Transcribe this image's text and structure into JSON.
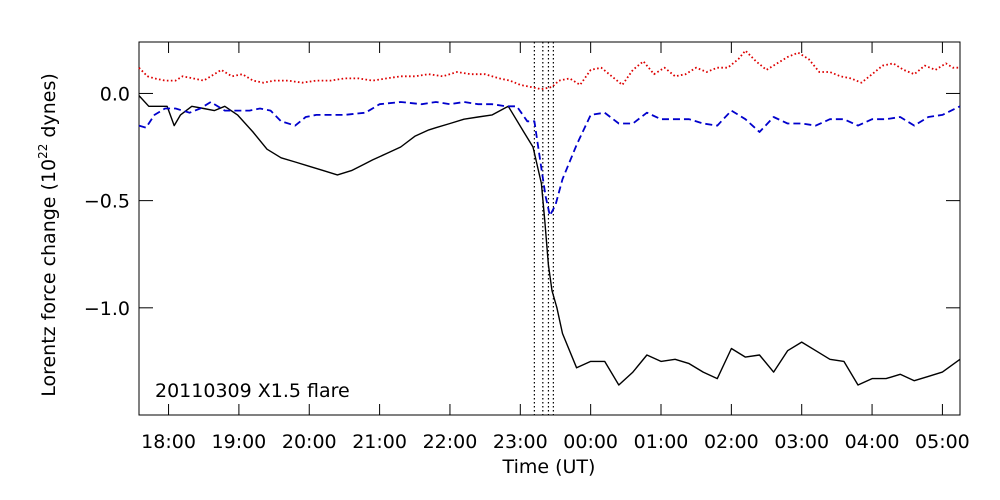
{
  "chart_data": {
    "type": "line",
    "title": "",
    "annotation": "20110309 X1.5 flare",
    "xlabel": "Time (UT)",
    "ylabel_main": "Lorentz force change (10",
    "ylabel_exp": "22",
    "ylabel_tail": " dynes)",
    "x_ticks": [
      "18:00",
      "19:00",
      "20:00",
      "21:00",
      "22:00",
      "23:00",
      "00:00",
      "01:00",
      "02:00",
      "03:00",
      "04:00",
      "05:00"
    ],
    "x_tick_hours": [
      18,
      19,
      20,
      21,
      22,
      23,
      24,
      25,
      26,
      27,
      28,
      29
    ],
    "xlim_hours": [
      17.58,
      29.25
    ],
    "y_ticks": [
      0.0,
      -0.5,
      -1.0
    ],
    "y_tick_labels": [
      "0.0",
      "−0.5",
      "−1.0"
    ],
    "ylim": [
      -1.5,
      0.24
    ],
    "grid": false,
    "flare_lines_hours": [
      23.2,
      23.32,
      23.4,
      23.47
    ],
    "series": [
      {
        "style": "solid",
        "color": "#000000",
        "x": [
          17.58,
          17.72,
          17.83,
          17.98,
          18.08,
          18.17,
          18.33,
          18.5,
          18.65,
          18.8,
          18.98,
          19.2,
          19.4,
          19.6,
          19.8,
          20.0,
          20.2,
          20.4,
          20.6,
          20.78,
          20.9,
          21.1,
          21.3,
          21.5,
          21.7,
          21.8,
          22.0,
          22.2,
          22.4,
          22.6,
          22.83,
          23.05,
          23.18,
          23.3,
          23.35,
          23.4,
          23.45,
          23.52,
          23.6,
          23.8,
          24.0,
          24.2,
          24.4,
          24.6,
          24.8,
          25.0,
          25.2,
          25.4,
          25.6,
          25.8,
          26.0,
          26.2,
          26.4,
          26.6,
          26.8,
          27.0,
          27.2,
          27.4,
          27.6,
          27.8,
          28.0,
          28.2,
          28.4,
          28.6,
          28.8,
          29.0,
          29.25
        ],
        "y": [
          -0.01,
          -0.06,
          -0.06,
          -0.06,
          -0.15,
          -0.1,
          -0.06,
          -0.07,
          -0.08,
          -0.06,
          -0.1,
          -0.18,
          -0.26,
          -0.3,
          -0.32,
          -0.34,
          -0.36,
          -0.38,
          -0.36,
          -0.33,
          -0.31,
          -0.28,
          -0.25,
          -0.2,
          -0.17,
          -0.16,
          -0.14,
          -0.12,
          -0.11,
          -0.1,
          -0.06,
          -0.18,
          -0.25,
          -0.42,
          -0.6,
          -0.8,
          -0.92,
          -1.0,
          -1.12,
          -1.28,
          -1.25,
          -1.25,
          -1.36,
          -1.3,
          -1.22,
          -1.25,
          -1.24,
          -1.26,
          -1.3,
          -1.33,
          -1.19,
          -1.23,
          -1.22,
          -1.3,
          -1.2,
          -1.16,
          -1.2,
          -1.24,
          -1.25,
          -1.36,
          -1.33,
          -1.33,
          -1.31,
          -1.34,
          -1.32,
          -1.3,
          -1.24
        ]
      },
      {
        "style": "dashed",
        "color": "#0000cc",
        "x": [
          17.58,
          17.68,
          17.8,
          17.95,
          18.1,
          18.3,
          18.45,
          18.6,
          18.8,
          19.0,
          19.15,
          19.3,
          19.45,
          19.6,
          19.8,
          19.95,
          20.1,
          20.3,
          20.5,
          20.8,
          21.0,
          21.3,
          21.6,
          21.8,
          22.0,
          22.2,
          22.4,
          22.6,
          22.8,
          22.95,
          23.1,
          23.2,
          23.3,
          23.36,
          23.42,
          23.5,
          23.6,
          23.8,
          24.0,
          24.2,
          24.4,
          24.6,
          24.8,
          25.0,
          25.2,
          25.4,
          25.6,
          25.8,
          26.0,
          26.2,
          26.4,
          26.6,
          26.8,
          27.0,
          27.2,
          27.4,
          27.6,
          27.8,
          28.0,
          28.2,
          28.4,
          28.6,
          28.8,
          29.0,
          29.25
        ],
        "y": [
          -0.15,
          -0.16,
          -0.1,
          -0.07,
          -0.07,
          -0.09,
          -0.07,
          -0.04,
          -0.08,
          -0.08,
          -0.08,
          -0.07,
          -0.08,
          -0.13,
          -0.15,
          -0.11,
          -0.1,
          -0.1,
          -0.1,
          -0.09,
          -0.05,
          -0.04,
          -0.05,
          -0.04,
          -0.05,
          -0.04,
          -0.05,
          -0.05,
          -0.06,
          -0.06,
          -0.13,
          -0.13,
          -0.35,
          -0.48,
          -0.57,
          -0.52,
          -0.4,
          -0.24,
          -0.1,
          -0.09,
          -0.14,
          -0.14,
          -0.09,
          -0.12,
          -0.12,
          -0.12,
          -0.14,
          -0.15,
          -0.08,
          -0.12,
          -0.18,
          -0.11,
          -0.14,
          -0.14,
          -0.15,
          -0.12,
          -0.12,
          -0.15,
          -0.12,
          -0.12,
          -0.11,
          -0.15,
          -0.11,
          -0.1,
          -0.06
        ]
      },
      {
        "style": "dotted",
        "color": "#dd0000",
        "x": [
          17.58,
          17.7,
          17.8,
          17.95,
          18.1,
          18.2,
          18.35,
          18.5,
          18.6,
          18.75,
          18.9,
          19.05,
          19.2,
          19.35,
          19.5,
          19.7,
          19.9,
          20.1,
          20.3,
          20.5,
          20.7,
          20.9,
          21.1,
          21.3,
          21.5,
          21.7,
          21.9,
          22.1,
          22.3,
          22.5,
          22.7,
          22.85,
          23.0,
          23.15,
          23.3,
          23.45,
          23.55,
          23.7,
          23.85,
          24.0,
          24.15,
          24.3,
          24.45,
          24.6,
          24.75,
          24.9,
          25.05,
          25.2,
          25.35,
          25.5,
          25.65,
          25.8,
          25.95,
          26.1,
          26.2,
          26.35,
          26.5,
          26.65,
          26.8,
          26.95,
          27.1,
          27.25,
          27.4,
          27.55,
          27.7,
          27.85,
          28.0,
          28.15,
          28.3,
          28.45,
          28.6,
          28.75,
          28.9,
          29.05,
          29.15,
          29.25
        ],
        "y": [
          0.12,
          0.08,
          0.07,
          0.06,
          0.06,
          0.08,
          0.07,
          0.06,
          0.08,
          0.11,
          0.08,
          0.09,
          0.06,
          0.05,
          0.06,
          0.06,
          0.05,
          0.06,
          0.06,
          0.07,
          0.07,
          0.06,
          0.07,
          0.08,
          0.08,
          0.09,
          0.08,
          0.1,
          0.09,
          0.09,
          0.07,
          0.06,
          0.04,
          0.03,
          0.02,
          0.03,
          0.06,
          0.07,
          0.04,
          0.11,
          0.12,
          0.08,
          0.04,
          0.11,
          0.15,
          0.09,
          0.12,
          0.08,
          0.09,
          0.12,
          0.1,
          0.12,
          0.12,
          0.16,
          0.2,
          0.15,
          0.11,
          0.14,
          0.17,
          0.19,
          0.16,
          0.1,
          0.1,
          0.08,
          0.07,
          0.05,
          0.09,
          0.13,
          0.14,
          0.11,
          0.09,
          0.13,
          0.11,
          0.14,
          0.12,
          0.12
        ]
      }
    ]
  }
}
